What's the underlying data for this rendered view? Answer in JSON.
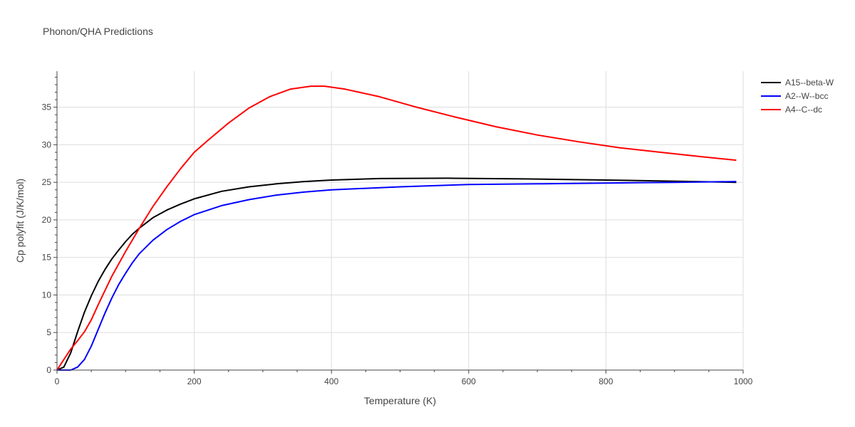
{
  "chart_data": {
    "type": "line",
    "title": "Phonon/QHA Predictions",
    "xlabel": "Temperature (K)",
    "ylabel": "Cp polyfit (J/K/mol)",
    "xlim": [
      0,
      1000
    ],
    "ylim": [
      0,
      39.8
    ],
    "x_ticks": [
      0,
      200,
      400,
      600,
      800,
      1000
    ],
    "y_ticks": [
      0,
      5,
      10,
      15,
      20,
      25,
      30,
      35
    ],
    "grid": true,
    "legend_position": "top-right",
    "series": [
      {
        "name": "A15--beta-W",
        "color": "#000000",
        "x": [
          0,
          10,
          20,
          30,
          40,
          50,
          60,
          70,
          80,
          90,
          100,
          110,
          120,
          140,
          160,
          180,
          200,
          240,
          280,
          320,
          360,
          400,
          470,
          570,
          680,
          800,
          900,
          990
        ],
        "y": [
          0,
          0.4,
          2.3,
          5.1,
          7.7,
          9.9,
          11.8,
          13.4,
          14.8,
          16.0,
          17.1,
          18.1,
          18.9,
          20.3,
          21.3,
          22.1,
          22.8,
          23.8,
          24.4,
          24.8,
          25.1,
          25.3,
          25.5,
          25.55,
          25.45,
          25.3,
          25.15,
          25.0
        ]
      },
      {
        "name": "A2--W--bcc",
        "color": "#0000ff",
        "x": [
          0,
          20,
          30,
          40,
          50,
          60,
          70,
          80,
          90,
          100,
          110,
          120,
          140,
          160,
          180,
          200,
          240,
          280,
          320,
          360,
          400,
          500,
          600,
          700,
          800,
          900,
          990
        ],
        "y": [
          0,
          0,
          0.4,
          1.4,
          3.2,
          5.4,
          7.6,
          9.6,
          11.4,
          12.9,
          14.3,
          15.5,
          17.3,
          18.7,
          19.8,
          20.7,
          21.9,
          22.7,
          23.3,
          23.7,
          24.0,
          24.4,
          24.7,
          24.8,
          24.9,
          25.0,
          25.1
        ]
      },
      {
        "name": "A4--C--dc",
        "color": "#ff0000",
        "x": [
          0,
          10,
          20,
          30,
          40,
          50,
          60,
          80,
          100,
          120,
          140,
          160,
          180,
          200,
          220,
          250,
          280,
          310,
          340,
          370,
          390,
          420,
          470,
          520,
          580,
          640,
          700,
          760,
          820,
          880,
          940,
          990
        ],
        "y": [
          0,
          1.4,
          2.8,
          3.9,
          5.1,
          6.7,
          8.7,
          12.5,
          15.8,
          18.9,
          21.8,
          24.4,
          26.8,
          29.0,
          30.6,
          32.9,
          34.9,
          36.4,
          37.4,
          37.8,
          37.8,
          37.4,
          36.4,
          35.1,
          33.7,
          32.4,
          31.3,
          30.4,
          29.6,
          29.0,
          28.4,
          27.95
        ]
      }
    ]
  }
}
